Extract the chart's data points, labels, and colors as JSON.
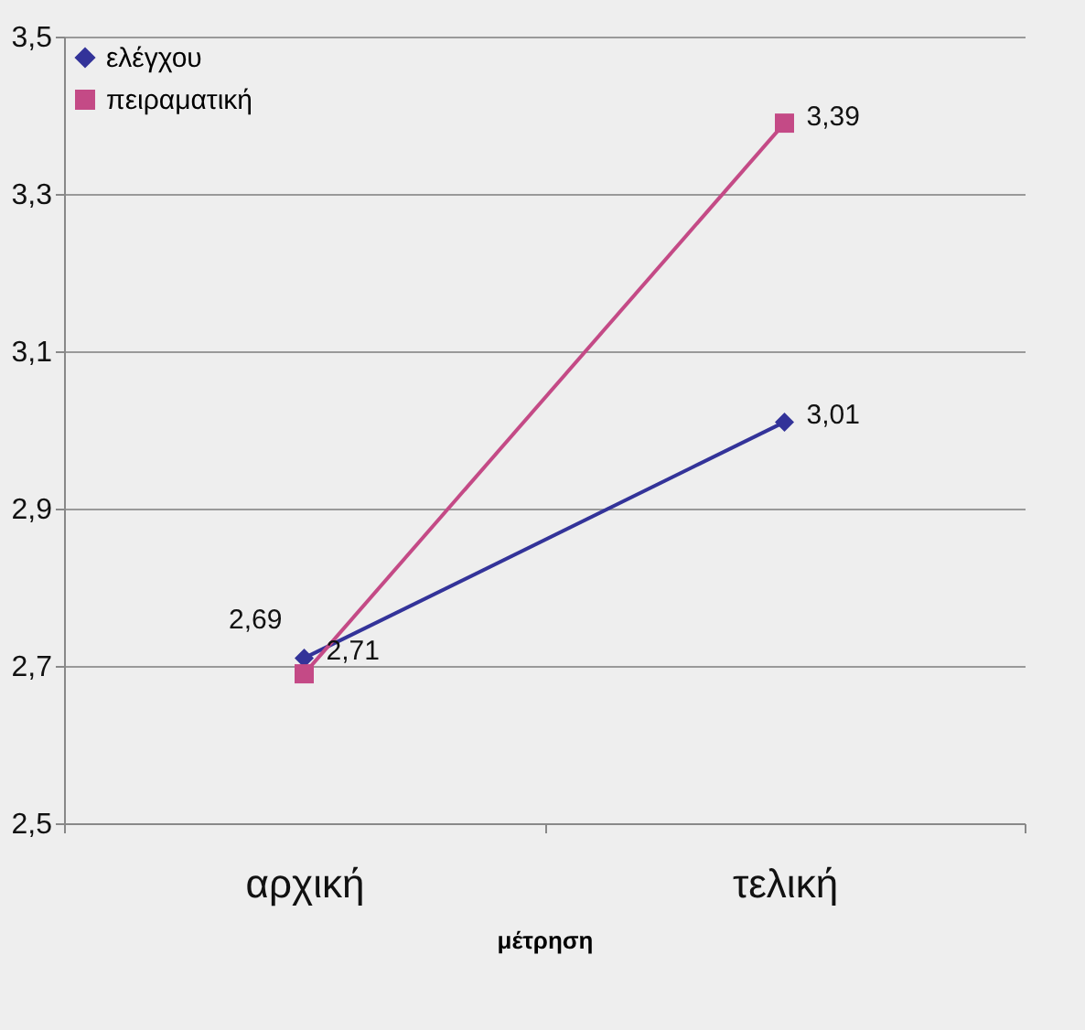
{
  "chart_data": {
    "type": "line",
    "xlabel": "μέτρηση",
    "categories": [
      "αρχική",
      "τελική"
    ],
    "series": [
      {
        "name": "ελέγχου",
        "color": "#333399",
        "values": [
          2.71,
          3.01
        ],
        "value_labels": [
          "2,71",
          "3,01"
        ],
        "marker": "diamond"
      },
      {
        "name": "πειραματική",
        "color": "#c44a86",
        "values": [
          2.69,
          3.39
        ],
        "value_labels": [
          "2,69",
          "3,39"
        ],
        "marker": "square"
      }
    ],
    "ylim": [
      2.5,
      3.5
    ],
    "yticks": [
      {
        "value": 2.5,
        "label": "2,5"
      },
      {
        "value": 2.7,
        "label": "2,7"
      },
      {
        "value": 2.9,
        "label": "2,9"
      },
      {
        "value": 3.1,
        "label": "3,1"
      },
      {
        "value": 3.3,
        "label": "3,3"
      },
      {
        "value": 3.5,
        "label": "3,5"
      }
    ],
    "grid": "y",
    "legend": "top left"
  }
}
